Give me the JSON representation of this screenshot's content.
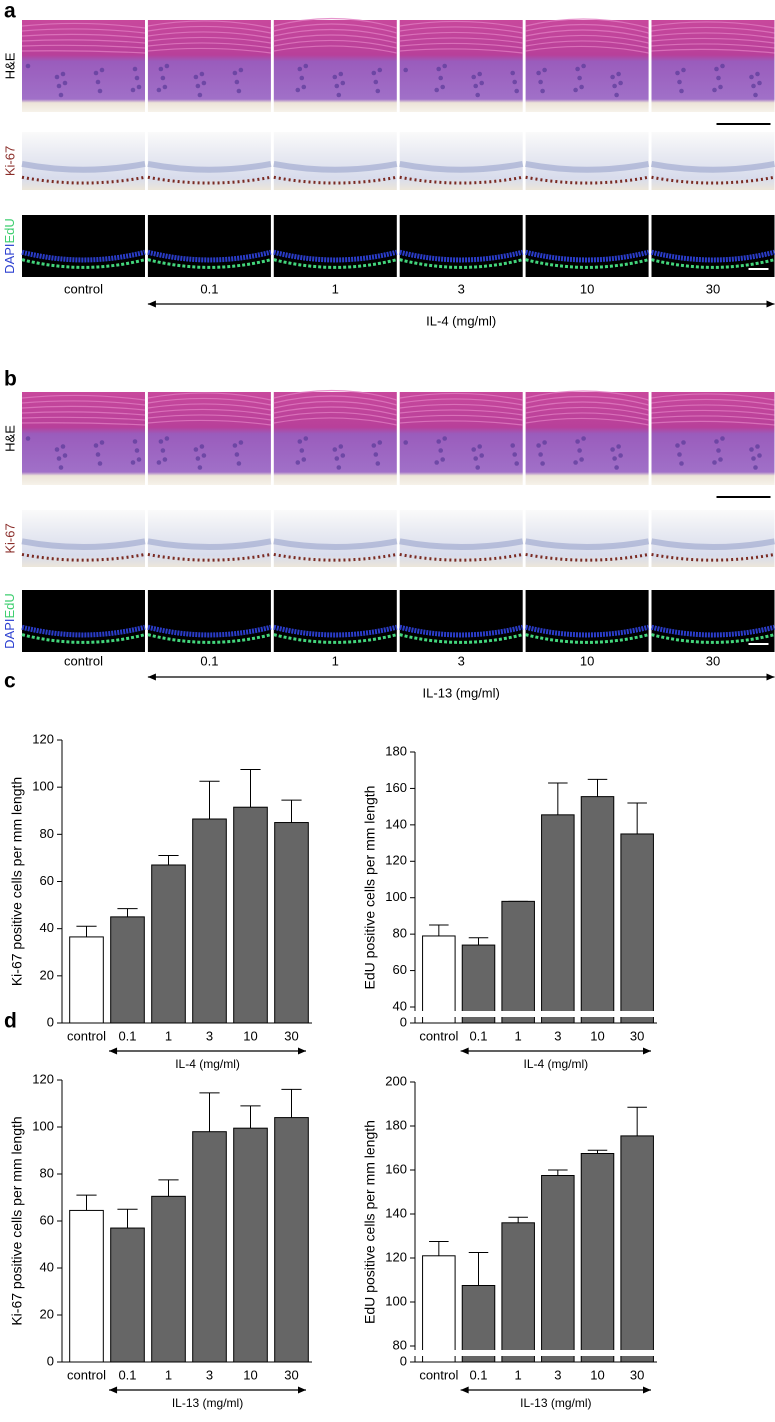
{
  "panels": [
    {
      "letter": "a",
      "row_labels": [
        "H&E",
        "Ki-67",
        "DAPI",
        "EdU"
      ],
      "doses": [
        "control",
        "0.1",
        "1",
        "3",
        "10",
        "30"
      ],
      "treatment": "IL-4 (mg/ml)"
    },
    {
      "letter": "b",
      "row_labels": [
        "H&E",
        "Ki-67",
        "DAPI",
        "EdU"
      ],
      "doses": [
        "control",
        "0.1",
        "1",
        "3",
        "10",
        "30"
      ],
      "treatment": "IL-13 (mg/ml)"
    }
  ],
  "chart_letters": [
    "c",
    "d"
  ],
  "chart_data": [
    {
      "type": "bar",
      "y_label": "Ki-67 positive cells per mm length",
      "x_label": "IL-4 (mg/ml)",
      "categories": [
        "control",
        "0.1",
        "1",
        "3",
        "10",
        "30"
      ],
      "values": [
        36.5,
        45,
        67,
        86.5,
        91.5,
        85
      ],
      "errors": [
        4.5,
        3.5,
        4,
        16,
        16,
        9.5
      ],
      "colors": [
        "#ffffff",
        "#666666",
        "#666666",
        "#666666",
        "#666666",
        "#666666"
      ],
      "ylim": [
        0,
        120
      ],
      "yticks": [
        0,
        20,
        40,
        60,
        80,
        100,
        120
      ],
      "axis_break": false
    },
    {
      "type": "bar",
      "y_label": "EdU positive cells per mm length",
      "x_label": "IL-4 (mg/ml)",
      "categories": [
        "control",
        "0.1",
        "1",
        "3",
        "10",
        "30"
      ],
      "values": [
        79,
        74,
        98,
        145.5,
        155.5,
        135
      ],
      "errors": [
        6,
        4,
        0,
        17.5,
        9.5,
        17
      ],
      "colors": [
        "#ffffff",
        "#666666",
        "#666666",
        "#666666",
        "#666666",
        "#666666"
      ],
      "ylim": [
        0,
        180
      ],
      "yticks": [
        0,
        40,
        60,
        80,
        100,
        120,
        140,
        160,
        180
      ],
      "axis_break": true
    },
    {
      "type": "bar",
      "y_label": "Ki-67 positive cells per mm length",
      "x_label": "IL-13 (mg/ml)",
      "categories": [
        "control",
        "0.1",
        "1",
        "3",
        "10",
        "30"
      ],
      "values": [
        64.5,
        57,
        70.5,
        98,
        99.5,
        104
      ],
      "errors": [
        6.5,
        8,
        7,
        16.5,
        9.5,
        12
      ],
      "colors": [
        "#ffffff",
        "#666666",
        "#666666",
        "#666666",
        "#666666",
        "#666666"
      ],
      "ylim": [
        0,
        120
      ],
      "yticks": [
        0,
        20,
        40,
        60,
        80,
        100,
        120
      ],
      "axis_break": false
    },
    {
      "type": "bar",
      "y_label": "EdU positive cells per mm length",
      "x_label": "IL-13 (mg/ml)",
      "categories": [
        "control",
        "0.1",
        "1",
        "3",
        "10",
        "30"
      ],
      "values": [
        121,
        107.5,
        136,
        157.5,
        167.5,
        175.5
      ],
      "errors": [
        6.5,
        15,
        2.5,
        2.5,
        1.5,
        13
      ],
      "colors": [
        "#ffffff",
        "#666666",
        "#666666",
        "#666666",
        "#666666",
        "#666666"
      ],
      "ylim": [
        0,
        200
      ],
      "yticks": [
        0,
        80,
        100,
        120,
        140,
        160,
        180,
        200
      ],
      "axis_break": true
    }
  ]
}
